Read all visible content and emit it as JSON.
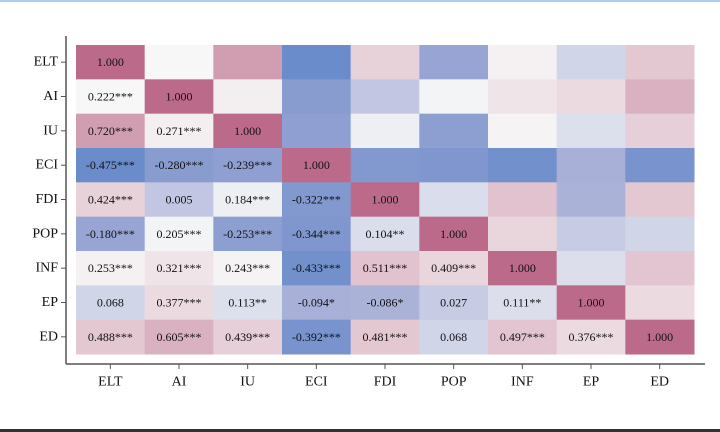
{
  "chart_data": {
    "type": "heatmap",
    "title": "",
    "variables": [
      "ELT",
      "AI",
      "IU",
      "ECI",
      "FDI",
      "POP",
      "INF",
      "EP",
      "ED"
    ],
    "lower_triangle_labels": [
      [
        "1.000"
      ],
      [
        "0.222***",
        "1.000"
      ],
      [
        "0.720***",
        "0.271***",
        "1.000"
      ],
      [
        "-0.475***",
        "-0.280***",
        "-0.239***",
        "1.000"
      ],
      [
        "0.424***",
        "0.005",
        "0.184***",
        "-0.322***",
        "1.000"
      ],
      [
        "-0.180***",
        "0.205***",
        "-0.253***",
        "-0.344***",
        "0.104**",
        "1.000"
      ],
      [
        "0.253***",
        "0.321***",
        "0.243***",
        "-0.433***",
        "0.511***",
        "0.409***",
        "1.000"
      ],
      [
        "0.068",
        "0.377***",
        "0.113**",
        "-0.094*",
        "-0.086*",
        "0.027",
        "0.111**",
        "1.000"
      ],
      [
        "0.488***",
        "0.605***",
        "0.439***",
        "-0.392***",
        "0.481***",
        "0.068",
        "0.497***",
        "0.376***",
        "1.000"
      ]
    ],
    "values": [
      [
        1.0
      ],
      [
        0.222,
        1.0
      ],
      [
        0.72,
        0.271,
        1.0
      ],
      [
        -0.475,
        -0.28,
        -0.239,
        1.0
      ],
      [
        0.424,
        0.005,
        0.184,
        -0.322,
        1.0
      ],
      [
        -0.18,
        0.205,
        -0.253,
        -0.344,
        0.104,
        1.0
      ],
      [
        0.253,
        0.321,
        0.243,
        -0.433,
        0.511,
        0.409,
        1.0
      ],
      [
        0.068,
        0.377,
        0.113,
        -0.094,
        -0.086,
        0.027,
        0.111,
        1.0
      ],
      [
        0.488,
        0.605,
        0.439,
        -0.392,
        0.481,
        0.068,
        0.497,
        0.376,
        1.0
      ]
    ],
    "upper_triangle": "color only (mirrored)",
    "colors": {
      "positive": "#bc6a89",
      "neutral": "#f7f7f7",
      "negative_mid": "#a0a8d4",
      "negative": "#6a8ccb"
    },
    "grid": false
  }
}
